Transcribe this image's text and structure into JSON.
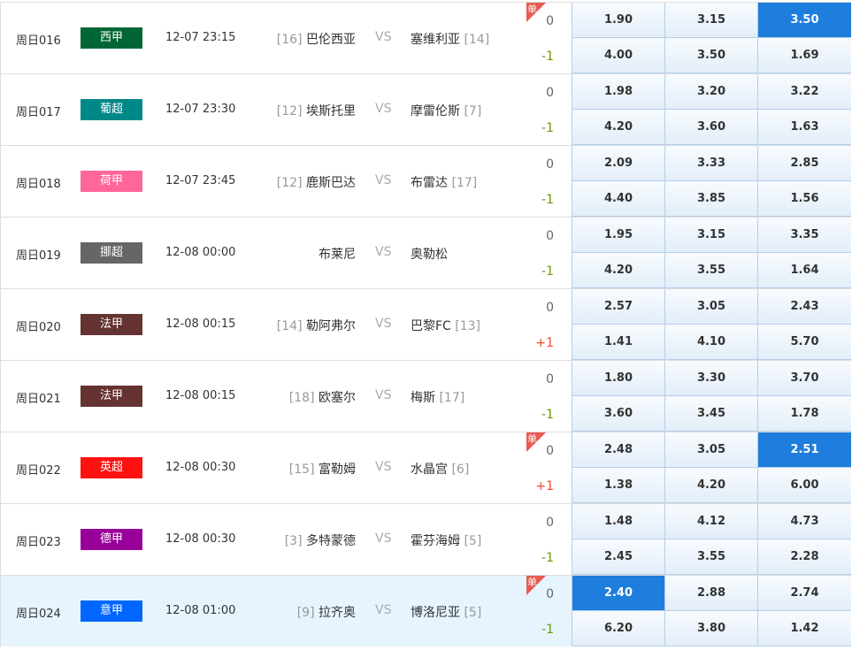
{
  "vs_label": "VS",
  "single_badge": "单",
  "colors": {
    "selected": "#1e7ddd",
    "negative_handicap": "#669900",
    "positive_handicap": "#ff4422",
    "highlight_row": "#e6f5fd"
  },
  "matches": [
    {
      "id": "周日016",
      "league": "西甲",
      "league_color": "#006633",
      "time": "12-07 23:15",
      "home_rank": "[16]",
      "home": "巴伦西亚",
      "away": "塞维利亚",
      "away_rank": "[14]",
      "single": true,
      "handicap0": "0",
      "handicap1": "-1",
      "odds0": [
        "1.90",
        "3.15",
        "3.50"
      ],
      "odds1": [
        "4.00",
        "3.50",
        "1.69"
      ],
      "selected": [
        [
          0,
          2
        ]
      ]
    },
    {
      "id": "周日017",
      "league": "葡超",
      "league_color": "#008888",
      "time": "12-07 23:30",
      "home_rank": "[12]",
      "home": "埃斯托里",
      "away": "摩雷伦斯",
      "away_rank": "[7]",
      "single": false,
      "handicap0": "0",
      "handicap1": "-1",
      "odds0": [
        "1.98",
        "3.20",
        "3.22"
      ],
      "odds1": [
        "4.20",
        "3.60",
        "1.63"
      ],
      "selected": []
    },
    {
      "id": "周日018",
      "league": "荷甲",
      "league_color": "#ff6699",
      "time": "12-07 23:45",
      "home_rank": "[12]",
      "home": "鹿斯巴达",
      "away": "布雷达",
      "away_rank": "[17]",
      "single": false,
      "handicap0": "0",
      "handicap1": "-1",
      "odds0": [
        "2.09",
        "3.33",
        "2.85"
      ],
      "odds1": [
        "4.40",
        "3.85",
        "1.56"
      ],
      "selected": []
    },
    {
      "id": "周日019",
      "league": "挪超",
      "league_color": "#666666",
      "time": "12-08 00:00",
      "home_rank": "",
      "home": "布莱尼",
      "away": "奥勒松",
      "away_rank": "",
      "single": false,
      "handicap0": "0",
      "handicap1": "-1",
      "odds0": [
        "1.95",
        "3.15",
        "3.35"
      ],
      "odds1": [
        "4.20",
        "3.55",
        "1.64"
      ],
      "selected": []
    },
    {
      "id": "周日020",
      "league": "法甲",
      "league_color": "#663333",
      "time": "12-08 00:15",
      "home_rank": "[14]",
      "home": "勒阿弗尔",
      "away": "巴黎FC",
      "away_rank": "[13]",
      "single": false,
      "handicap0": "0",
      "handicap1": "+1",
      "odds0": [
        "2.57",
        "3.05",
        "2.43"
      ],
      "odds1": [
        "1.41",
        "4.10",
        "5.70"
      ],
      "selected": []
    },
    {
      "id": "周日021",
      "league": "法甲",
      "league_color": "#663333",
      "time": "12-08 00:15",
      "home_rank": "[18]",
      "home": "欧塞尔",
      "away": "梅斯",
      "away_rank": "[17]",
      "single": false,
      "handicap0": "0",
      "handicap1": "-1",
      "odds0": [
        "1.80",
        "3.30",
        "3.70"
      ],
      "odds1": [
        "3.60",
        "3.45",
        "1.78"
      ],
      "selected": []
    },
    {
      "id": "周日022",
      "league": "英超",
      "league_color": "#ff1111",
      "time": "12-08 00:30",
      "home_rank": "[15]",
      "home": "富勒姆",
      "away": "水晶宫",
      "away_rank": "[6]",
      "single": true,
      "handicap0": "0",
      "handicap1": "+1",
      "odds0": [
        "2.48",
        "3.05",
        "2.51"
      ],
      "odds1": [
        "1.38",
        "4.20",
        "6.00"
      ],
      "selected": [
        [
          0,
          2
        ]
      ]
    },
    {
      "id": "周日023",
      "league": "德甲",
      "league_color": "#990099",
      "time": "12-08 00:30",
      "home_rank": "[3]",
      "home": "多特蒙德",
      "away": "霍芬海姆",
      "away_rank": "[5]",
      "single": false,
      "handicap0": "0",
      "handicap1": "-1",
      "odds0": [
        "1.48",
        "4.12",
        "4.73"
      ],
      "odds1": [
        "2.45",
        "3.55",
        "2.28"
      ],
      "selected": []
    },
    {
      "id": "周日024",
      "league": "意甲",
      "league_color": "#0066ff",
      "time": "12-08 01:00",
      "home_rank": "[9]",
      "home": "拉齐奥",
      "away": "博洛尼亚",
      "away_rank": "[5]",
      "single": true,
      "handicap0": "0",
      "handicap1": "-1",
      "odds0": [
        "2.40",
        "2.88",
        "2.74"
      ],
      "odds1": [
        "6.20",
        "3.80",
        "1.42"
      ],
      "selected": [
        [
          0,
          0
        ]
      ],
      "highlighted": true
    }
  ]
}
